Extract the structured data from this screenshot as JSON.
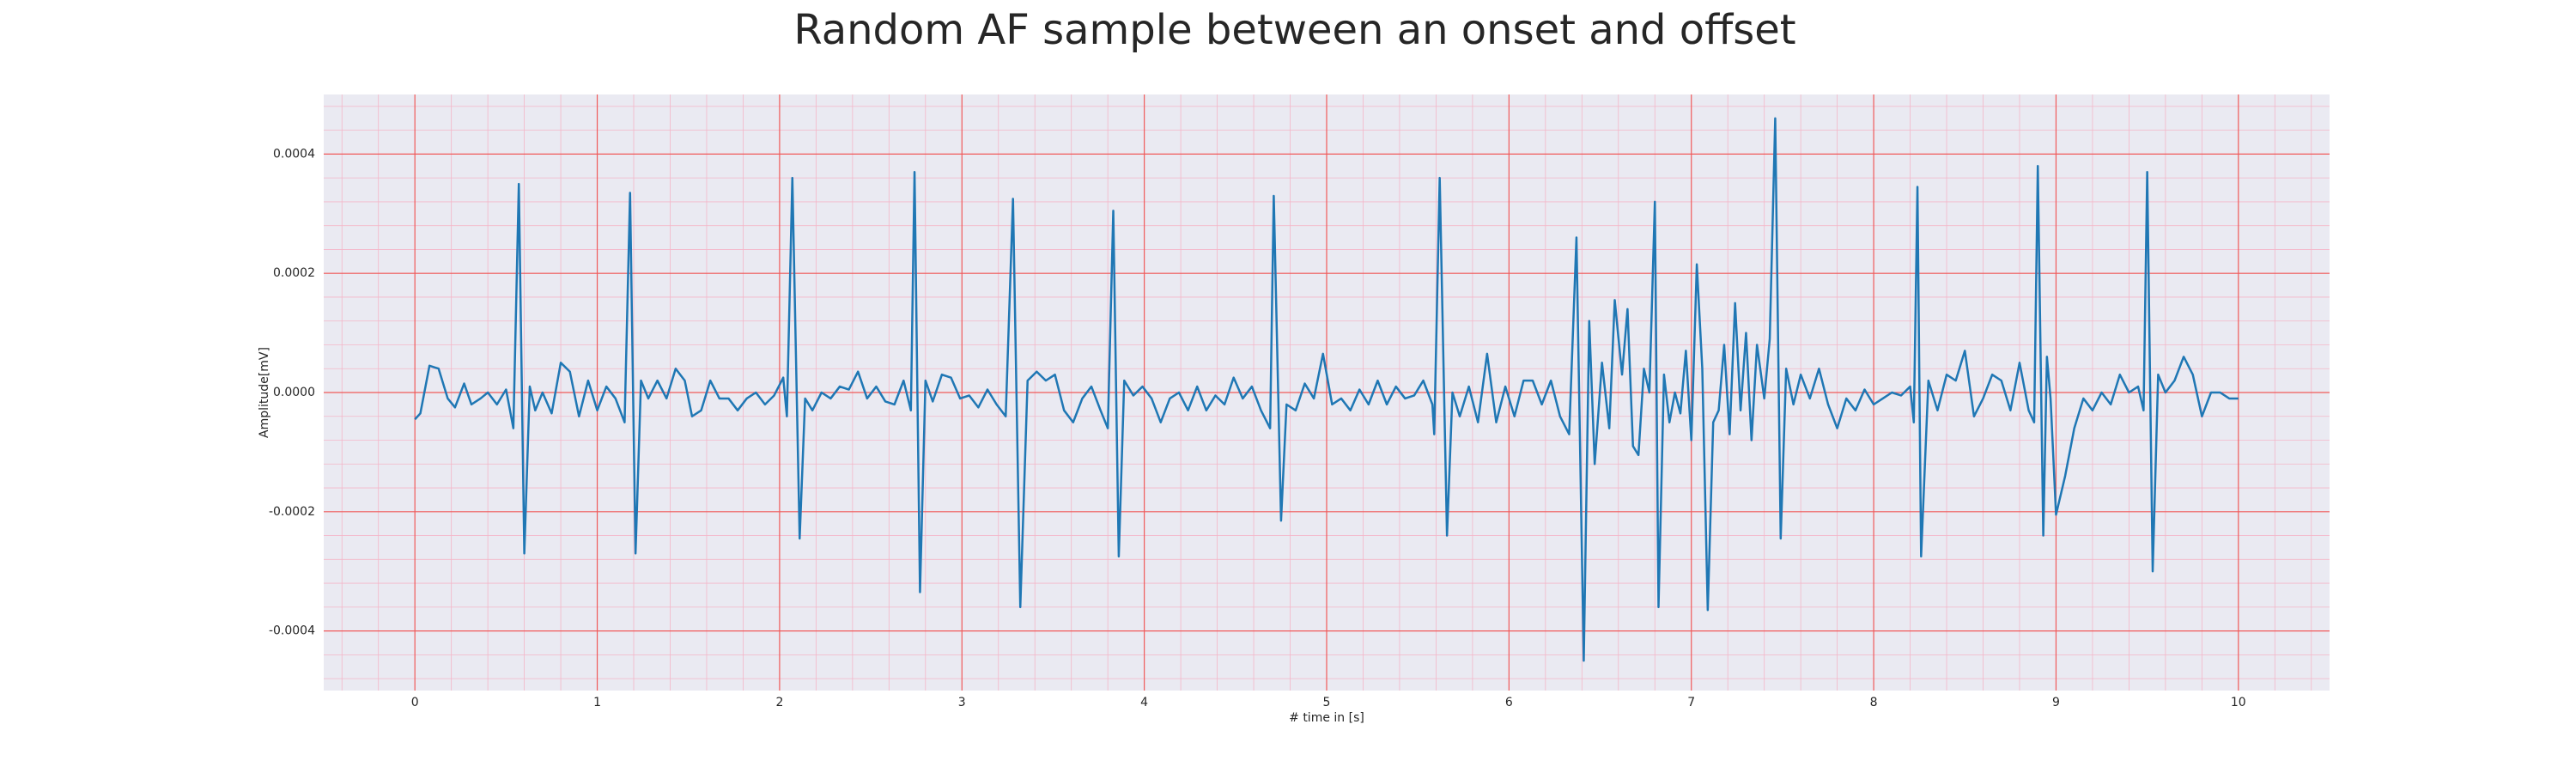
{
  "chart_data": {
    "type": "line",
    "title": "Random AF sample between an onset and offset",
    "xlabel": "# time in [s]",
    "ylabel": "Amplitude[mV]",
    "color": "#1f77b4",
    "grid": true,
    "minor_grid": true,
    "xlim": [
      -0.5,
      10.5
    ],
    "ylim": [
      -0.0005,
      0.0005
    ],
    "xticks": [
      0,
      1,
      2,
      3,
      4,
      5,
      6,
      7,
      8,
      9,
      10
    ],
    "yticks": [
      -0.0004,
      -0.0002,
      {
        "value": 0,
        "label": "0.0000"
      },
      0.0002,
      0.0004
    ],
    "x": [
      0,
      0.03,
      0.08,
      0.13,
      0.18,
      0.22,
      0.27,
      0.31,
      0.36,
      0.4,
      0.45,
      0.5,
      0.54,
      0.57,
      0.6,
      0.63,
      0.66,
      0.7,
      0.75,
      0.8,
      0.85,
      0.9,
      0.95,
      1.0,
      1.05,
      1.1,
      1.15,
      1.18,
      1.21,
      1.24,
      1.28,
      1.33,
      1.38,
      1.43,
      1.48,
      1.52,
      1.57,
      1.62,
      1.67,
      1.72,
      1.77,
      1.82,
      1.87,
      1.92,
      1.97,
      2.02,
      2.04,
      2.07,
      2.11,
      2.14,
      2.18,
      2.23,
      2.28,
      2.33,
      2.38,
      2.43,
      2.48,
      2.53,
      2.58,
      2.63,
      2.68,
      2.72,
      2.74,
      2.77,
      2.8,
      2.84,
      2.89,
      2.94,
      2.99,
      3.04,
      3.09,
      3.14,
      3.19,
      3.24,
      3.28,
      3.32,
      3.36,
      3.41,
      3.46,
      3.51,
      3.56,
      3.61,
      3.66,
      3.71,
      3.76,
      3.8,
      3.83,
      3.86,
      3.89,
      3.94,
      3.99,
      4.04,
      4.09,
      4.14,
      4.19,
      4.24,
      4.29,
      4.34,
      4.39,
      4.44,
      4.49,
      4.54,
      4.59,
      4.64,
      4.69,
      4.71,
      4.75,
      4.78,
      4.83,
      4.88,
      4.93,
      4.98,
      5.03,
      5.08,
      5.13,
      5.18,
      5.23,
      5.28,
      5.33,
      5.38,
      5.43,
      5.48,
      5.53,
      5.58,
      5.59,
      5.62,
      5.66,
      5.69,
      5.73,
      5.78,
      5.83,
      5.88,
      5.93,
      5.98,
      6.03,
      6.08,
      6.13,
      6.18,
      6.23,
      6.28,
      6.33,
      6.37,
      6.41,
      6.44,
      6.47,
      6.51,
      6.55,
      6.58,
      6.62,
      6.65,
      6.68,
      6.71,
      6.74,
      6.77,
      6.8,
      6.82,
      6.85,
      6.88,
      6.91,
      6.94,
      6.97,
      7.0,
      7.03,
      7.06,
      7.09,
      7.12,
      7.15,
      7.18,
      7.21,
      7.24,
      7.27,
      7.3,
      7.33,
      7.36,
      7.4,
      7.43,
      7.46,
      7.49,
      7.52,
      7.56,
      7.6,
      7.65,
      7.7,
      7.75,
      7.8,
      7.85,
      7.9,
      7.95,
      8.0,
      8.05,
      8.1,
      8.15,
      8.2,
      8.22,
      8.24,
      8.26,
      8.3,
      8.35,
      8.4,
      8.45,
      8.5,
      8.55,
      8.6,
      8.65,
      8.7,
      8.75,
      8.8,
      8.85,
      8.88,
      8.9,
      8.93,
      8.95,
      8.97,
      9.0,
      9.05,
      9.1,
      9.15,
      9.2,
      9.25,
      9.3,
      9.35,
      9.4,
      9.45,
      9.48,
      9.5,
      9.53,
      9.56,
      9.6,
      9.65,
      9.7,
      9.75,
      9.8,
      9.85,
      9.9,
      9.95,
      10.0
    ],
    "values": [
      -4.5e-05,
      -3.5e-05,
      4.5e-05,
      4e-05,
      -1e-05,
      -2.5e-05,
      1.5e-05,
      -2e-05,
      -1e-05,
      0,
      -2e-05,
      5e-06,
      -6e-05,
      0.00035,
      -0.00027,
      1e-05,
      -3e-05,
      0,
      -3.5e-05,
      5e-05,
      3.5e-05,
      -4e-05,
      2e-05,
      -3e-05,
      1e-05,
      -1e-05,
      -5e-05,
      0.000335,
      -0.00027,
      2e-05,
      -1e-05,
      2e-05,
      -1e-05,
      4e-05,
      2e-05,
      -4e-05,
      -3e-05,
      2e-05,
      -1e-05,
      -1e-05,
      -3e-05,
      -1e-05,
      0,
      -2e-05,
      -5e-06,
      2.5e-05,
      -4e-05,
      0.00036,
      -0.000245,
      -1e-05,
      -3e-05,
      0,
      -1e-05,
      1e-05,
      5e-06,
      3.5e-05,
      -1e-05,
      1e-05,
      -1.5e-05,
      -2e-05,
      2e-05,
      -3e-05,
      0.00037,
      -0.000335,
      2e-05,
      -1.5e-05,
      3e-05,
      2.5e-05,
      -1e-05,
      -5e-06,
      -2.5e-05,
      5e-06,
      -2e-05,
      -4e-05,
      0.000325,
      -0.00036,
      2e-05,
      3.5e-05,
      2e-05,
      3e-05,
      -3e-05,
      -5e-05,
      -1e-05,
      1e-05,
      -3e-05,
      -6e-05,
      0.000305,
      -0.000275,
      2e-05,
      -5e-06,
      1e-05,
      -1e-05,
      -5e-05,
      -1e-05,
      0,
      -3e-05,
      1e-05,
      -3e-05,
      -5e-06,
      -2e-05,
      2.5e-05,
      -1e-05,
      1e-05,
      -3e-05,
      -6e-05,
      0.00033,
      -0.000215,
      -2e-05,
      -3e-05,
      1.5e-05,
      -1e-05,
      6.5e-05,
      -2e-05,
      -1e-05,
      -3e-05,
      5e-06,
      -2e-05,
      2e-05,
      -2e-05,
      1e-05,
      -1e-05,
      -5e-06,
      2e-05,
      -2e-05,
      -7e-05,
      0.00036,
      -0.00024,
      0,
      -4e-05,
      1e-05,
      -5e-05,
      6.5e-05,
      -5e-05,
      1e-05,
      -4e-05,
      2e-05,
      2e-05,
      -2e-05,
      2e-05,
      -4e-05,
      -7e-05,
      0.00026,
      -0.00045,
      0.00012,
      -0.00012,
      5e-05,
      -6e-05,
      0.000155,
      3e-05,
      0.00014,
      -9e-05,
      -0.000105,
      4e-05,
      0,
      0.00032,
      -0.00036,
      3e-05,
      -5e-05,
      0,
      -3.5e-05,
      7e-05,
      -8e-05,
      0.000215,
      4e-05,
      -0.000365,
      -5e-05,
      -3e-05,
      8e-05,
      -7e-05,
      0.00015,
      -3e-05,
      0.0001,
      -8e-05,
      8e-05,
      -1e-05,
      9e-05,
      0.00046,
      -0.000245,
      4e-05,
      -2e-05,
      3e-05,
      -1e-05,
      4e-05,
      -2e-05,
      -6e-05,
      -1e-05,
      -3e-05,
      5e-06,
      -2e-05,
      -1e-05,
      0,
      -5e-06,
      1e-05,
      -5e-05,
      0.000345,
      -0.000275,
      2e-05,
      -3e-05,
      3e-05,
      2e-05,
      7e-05,
      -4e-05,
      -1e-05,
      3e-05,
      2e-05,
      -3e-05,
      5e-05,
      -3e-05,
      -5e-05,
      0.00038,
      -0.00024,
      6e-05,
      -1e-05,
      -0.000205,
      -0.00014,
      -6e-05,
      -1e-05,
      -3e-05,
      0,
      -2e-05,
      3e-05,
      0,
      1e-05,
      -3e-05,
      0.00037,
      -0.0003,
      3e-05,
      0,
      2e-05,
      6e-05,
      3e-05,
      -4e-05,
      0,
      0,
      -1e-05,
      -1e-05
    ]
  }
}
